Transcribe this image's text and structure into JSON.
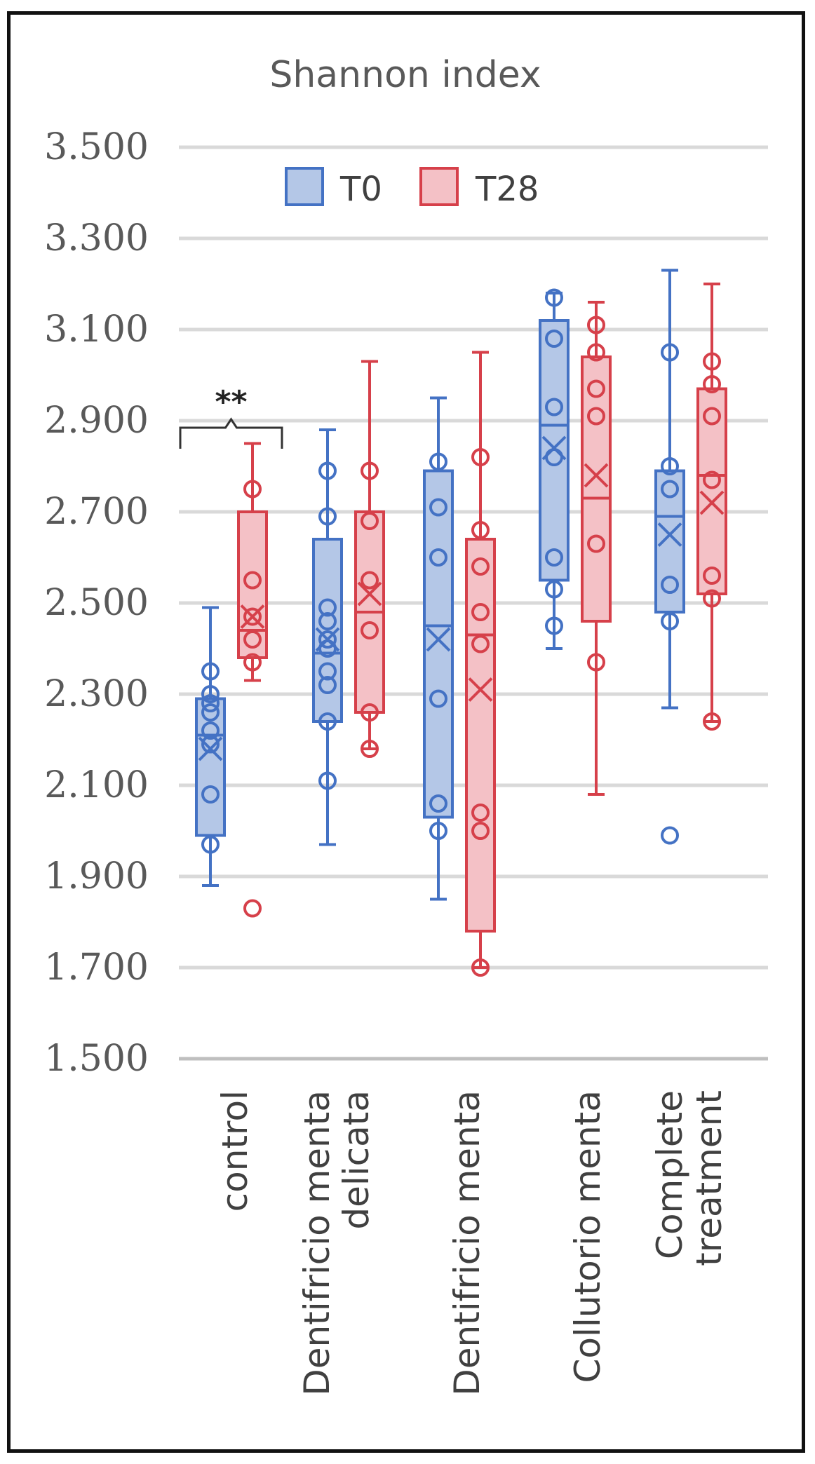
{
  "chart_data": {
    "type": "box",
    "title": "Shannon index",
    "ylim": [
      1.5,
      3.5
    ],
    "yticks": [
      "3.500",
      "3.300",
      "3.100",
      "2.900",
      "2.700",
      "2.500",
      "2.300",
      "2.100",
      "1.900",
      "1.700",
      "1.500"
    ],
    "ytick_values": [
      3.5,
      3.3,
      3.1,
      2.9,
      2.7,
      2.5,
      2.3,
      2.1,
      1.9,
      1.7,
      1.5
    ],
    "grid": true,
    "legend_position": "top",
    "categories": [
      [
        "control"
      ],
      [
        "Dentifricio menta",
        "delicata"
      ],
      [
        "Dentifricio menta"
      ],
      [
        "Collutorio menta"
      ],
      [
        "Complete",
        "treatment"
      ]
    ],
    "series": [
      {
        "name": "T0",
        "color": "#4472c4",
        "fill": "#b4c7e7",
        "boxes": [
          {
            "min": 1.88,
            "q1": 1.99,
            "median": 2.21,
            "q3": 2.29,
            "max": 2.49,
            "mean": 2.18,
            "points": [
              1.97,
              2.08,
              2.19,
              2.22,
              2.26,
              2.28,
              2.3,
              2.35
            ]
          },
          {
            "min": 1.97,
            "q1": 2.24,
            "median": 2.39,
            "q3": 2.64,
            "max": 2.88,
            "mean": 2.42,
            "points": [
              2.11,
              2.24,
              2.32,
              2.35,
              2.4,
              2.42,
              2.46,
              2.49,
              2.69,
              2.79
            ]
          },
          {
            "min": 1.85,
            "q1": 2.03,
            "median": 2.45,
            "q3": 2.79,
            "max": 2.95,
            "mean": 2.42,
            "points": [
              2.0,
              2.06,
              2.29,
              2.6,
              2.71,
              2.81
            ]
          },
          {
            "min": 2.4,
            "q1": 2.55,
            "median": 2.89,
            "q3": 3.12,
            "max": 3.18,
            "mean": 2.84,
            "points": [
              2.45,
              2.53,
              2.6,
              2.82,
              2.93,
              3.08,
              3.17
            ]
          },
          {
            "min": 2.27,
            "q1": 2.48,
            "median": 2.69,
            "q3": 2.79,
            "max": 3.23,
            "mean": 2.65,
            "points": [
              1.99,
              2.46,
              2.54,
              2.75,
              2.8,
              3.05
            ]
          }
        ]
      },
      {
        "name": "T28",
        "color": "#d6404a",
        "fill": "#f4c1c6",
        "boxes": [
          {
            "min": 2.33,
            "q1": 2.38,
            "median": 2.44,
            "q3": 2.7,
            "max": 2.85,
            "mean": 2.47,
            "points": [
              1.83,
              2.37,
              2.42,
              2.47,
              2.55,
              2.75
            ]
          },
          {
            "min": 2.18,
            "q1": 2.26,
            "median": 2.48,
            "q3": 2.7,
            "max": 3.03,
            "mean": 2.52,
            "points": [
              2.18,
              2.26,
              2.44,
              2.55,
              2.68,
              2.79
            ]
          },
          {
            "min": 1.7,
            "q1": 1.78,
            "median": 2.43,
            "q3": 2.64,
            "max": 3.05,
            "mean": 2.31,
            "points": [
              1.7,
              2.0,
              2.04,
              2.41,
              2.48,
              2.58,
              2.66,
              2.82
            ]
          },
          {
            "min": 2.08,
            "q1": 2.46,
            "median": 2.73,
            "q3": 3.04,
            "max": 3.16,
            "mean": 2.78,
            "points": [
              2.37,
              2.63,
              2.91,
              2.97,
              3.05,
              3.11
            ]
          },
          {
            "min": 2.24,
            "q1": 2.52,
            "median": 2.78,
            "q3": 2.97,
            "max": 3.2,
            "mean": 2.72,
            "points": [
              2.24,
              2.51,
              2.56,
              2.77,
              2.91,
              2.98,
              3.03
            ]
          }
        ]
      }
    ],
    "annotations": [
      {
        "text": "**",
        "category_index": 0
      }
    ]
  }
}
